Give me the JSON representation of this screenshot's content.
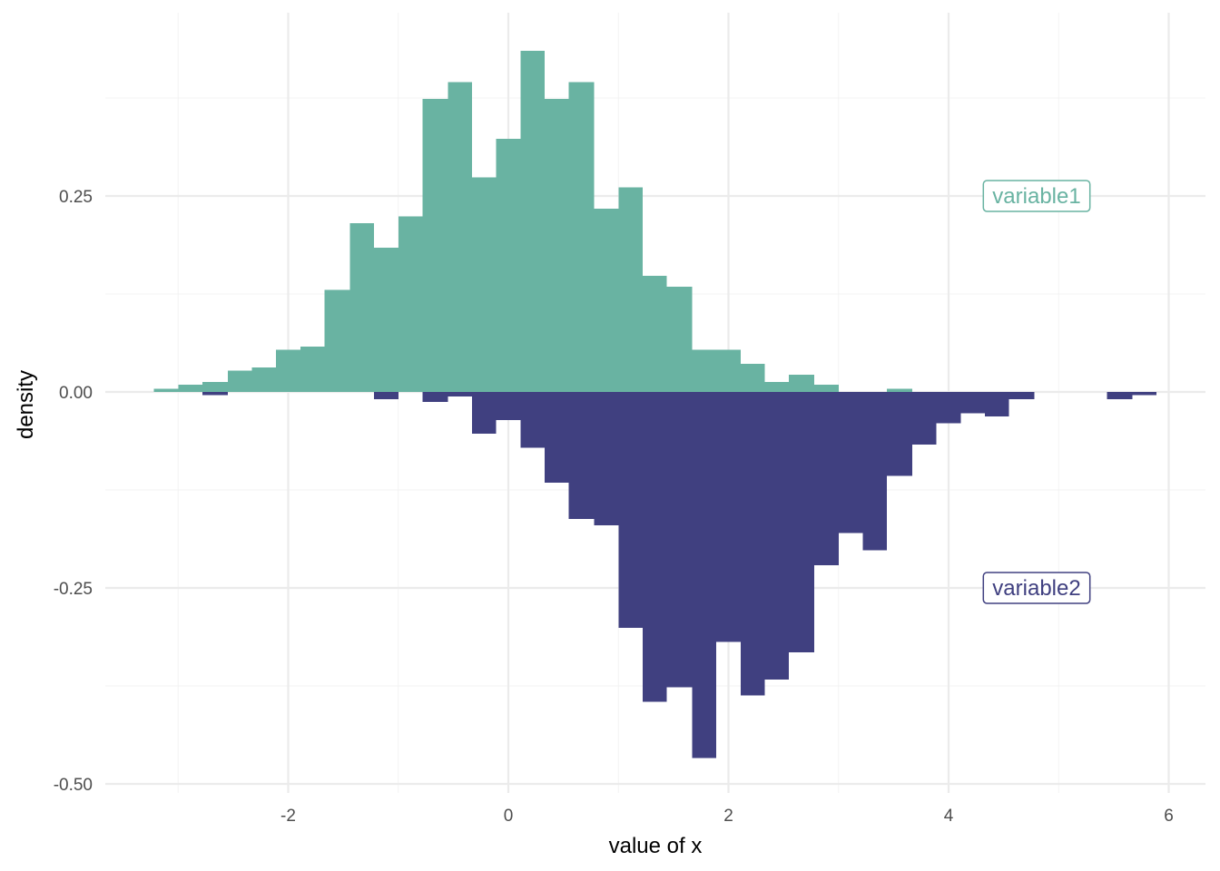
{
  "chart_data": {
    "type": "bar",
    "title": "",
    "xlabel": "value of x",
    "ylabel": "density",
    "xlim": [
      -3.65,
      6.35
    ],
    "ylim": [
      -0.5,
      0.435
    ],
    "x_ticks": [
      -2,
      0,
      2,
      4,
      6
    ],
    "x_tick_labels": [
      "-2",
      "0",
      "2",
      "4",
      "6"
    ],
    "y_ticks": [
      -0.5,
      -0.25,
      0.0,
      0.25
    ],
    "y_tick_labels": [
      "-0.50",
      "-0.25",
      "0.00",
      "0.25"
    ],
    "grid": true,
    "bin_width": 0.222,
    "series": [
      {
        "name": "variable1",
        "color": "#69b3a2",
        "direction": "up",
        "bins": [
          {
            "x0": -3.22,
            "x1": -3.0,
            "value": 0.004
          },
          {
            "x0": -3.0,
            "x1": -2.78,
            "value": 0.009
          },
          {
            "x0": -2.78,
            "x1": -2.55,
            "value": 0.013
          },
          {
            "x0": -2.55,
            "x1": -2.33,
            "value": 0.027
          },
          {
            "x0": -2.33,
            "x1": -2.11,
            "value": 0.031
          },
          {
            "x0": -2.11,
            "x1": -1.89,
            "value": 0.054
          },
          {
            "x0": -1.89,
            "x1": -1.67,
            "value": 0.058
          },
          {
            "x0": -1.67,
            "x1": -1.44,
            "value": 0.13
          },
          {
            "x0": -1.44,
            "x1": -1.22,
            "value": 0.215
          },
          {
            "x0": -1.22,
            "x1": -1.0,
            "value": 0.184
          },
          {
            "x0": -1.0,
            "x1": -0.78,
            "value": 0.224
          },
          {
            "x0": -0.78,
            "x1": -0.55,
            "value": 0.374
          },
          {
            "x0": -0.55,
            "x1": -0.33,
            "value": 0.395
          },
          {
            "x0": -0.33,
            "x1": -0.11,
            "value": 0.274
          },
          {
            "x0": -0.11,
            "x1": 0.11,
            "value": 0.323
          },
          {
            "x0": 0.11,
            "x1": 0.33,
            "value": 0.435
          },
          {
            "x0": 0.33,
            "x1": 0.55,
            "value": 0.374
          },
          {
            "x0": 0.55,
            "x1": 0.78,
            "value": 0.395
          },
          {
            "x0": 0.78,
            "x1": 1.0,
            "value": 0.234
          },
          {
            "x0": 1.0,
            "x1": 1.22,
            "value": 0.261
          },
          {
            "x0": 1.22,
            "x1": 1.44,
            "value": 0.148
          },
          {
            "x0": 1.44,
            "x1": 1.67,
            "value": 0.134
          },
          {
            "x0": 1.67,
            "x1": 1.89,
            "value": 0.054
          },
          {
            "x0": 1.89,
            "x1": 2.11,
            "value": 0.054
          },
          {
            "x0": 2.11,
            "x1": 2.33,
            "value": 0.036
          },
          {
            "x0": 2.33,
            "x1": 2.55,
            "value": 0.013
          },
          {
            "x0": 2.55,
            "x1": 2.78,
            "value": 0.022
          },
          {
            "x0": 2.78,
            "x1": 3.0,
            "value": 0.009
          },
          {
            "x0": 3.44,
            "x1": 3.67,
            "value": 0.004
          }
        ]
      },
      {
        "name": "variable2",
        "color": "#404080",
        "direction": "down",
        "bins": [
          {
            "x0": -2.78,
            "x1": -2.55,
            "value": -0.004
          },
          {
            "x0": -1.22,
            "x1": -1.0,
            "value": -0.009
          },
          {
            "x0": -0.78,
            "x1": -0.55,
            "value": -0.013
          },
          {
            "x0": -0.55,
            "x1": -0.33,
            "value": -0.006
          },
          {
            "x0": -0.33,
            "x1": -0.11,
            "value": -0.053
          },
          {
            "x0": -0.11,
            "x1": 0.11,
            "value": -0.036
          },
          {
            "x0": 0.11,
            "x1": 0.33,
            "value": -0.071
          },
          {
            "x0": 0.33,
            "x1": 0.55,
            "value": -0.116
          },
          {
            "x0": 0.55,
            "x1": 0.78,
            "value": -0.162
          },
          {
            "x0": 0.78,
            "x1": 1.0,
            "value": -0.17
          },
          {
            "x0": 1.0,
            "x1": 1.22,
            "value": -0.301
          },
          {
            "x0": 1.22,
            "x1": 1.44,
            "value": -0.395
          },
          {
            "x0": 1.44,
            "x1": 1.67,
            "value": -0.377
          },
          {
            "x0": 1.67,
            "x1": 1.89,
            "value": -0.467
          },
          {
            "x0": 1.89,
            "x1": 2.11,
            "value": -0.319
          },
          {
            "x0": 2.11,
            "x1": 2.33,
            "value": -0.387
          },
          {
            "x0": 2.33,
            "x1": 2.55,
            "value": -0.367
          },
          {
            "x0": 2.55,
            "x1": 2.78,
            "value": -0.332
          },
          {
            "x0": 2.78,
            "x1": 3.0,
            "value": -0.221
          },
          {
            "x0": 3.0,
            "x1": 3.22,
            "value": -0.18
          },
          {
            "x0": 3.22,
            "x1": 3.44,
            "value": -0.202
          },
          {
            "x0": 3.44,
            "x1": 3.67,
            "value": -0.107
          },
          {
            "x0": 3.67,
            "x1": 3.89,
            "value": -0.067
          },
          {
            "x0": 3.89,
            "x1": 4.11,
            "value": -0.04
          },
          {
            "x0": 4.11,
            "x1": 4.33,
            "value": -0.027
          },
          {
            "x0": 4.33,
            "x1": 4.55,
            "value": -0.031
          },
          {
            "x0": 4.55,
            "x1": 4.78,
            "value": -0.009
          },
          {
            "x0": 5.44,
            "x1": 5.67,
            "value": -0.009
          },
          {
            "x0": 5.67,
            "x1": 5.89,
            "value": -0.004
          }
        ]
      }
    ],
    "annotations": [
      {
        "text": "variable1",
        "x": 4.8,
        "y": 0.25,
        "color": "#69b3a2"
      },
      {
        "text": "variable2",
        "x": 4.8,
        "y": -0.25,
        "color": "#404080"
      }
    ]
  }
}
